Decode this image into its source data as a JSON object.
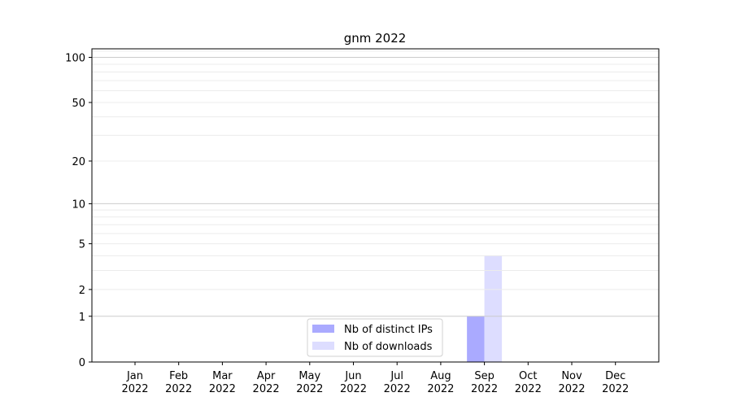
{
  "chart_data": {
    "type": "bar",
    "title": "gnm 2022",
    "xlabel": "",
    "ylabel": "",
    "categories": [
      "Jan\n2022",
      "Feb\n2022",
      "Mar\n2022",
      "Apr\n2022",
      "May\n2022",
      "Jun\n2022",
      "Jul\n2022",
      "Aug\n2022",
      "Sep\n2022",
      "Oct\n2022",
      "Nov\n2022",
      "Dec\n2022"
    ],
    "series": [
      {
        "name": "Nb of distinct IPs",
        "color": "#aaaaff",
        "values": [
          0,
          0,
          0,
          0,
          0,
          0,
          0,
          0,
          1,
          0,
          0,
          0
        ]
      },
      {
        "name": "Nb of downloads",
        "color": "#ddddff",
        "values": [
          0,
          0,
          0,
          0,
          0,
          0,
          0,
          0,
          4,
          0,
          0,
          0
        ]
      }
    ],
    "yscale": "log(y+1)",
    "yticks": [
      0,
      1,
      2,
      5,
      10,
      20,
      50,
      100
    ],
    "ylim": [
      0,
      114
    ],
    "grid": true,
    "legend": "bottom-center"
  }
}
